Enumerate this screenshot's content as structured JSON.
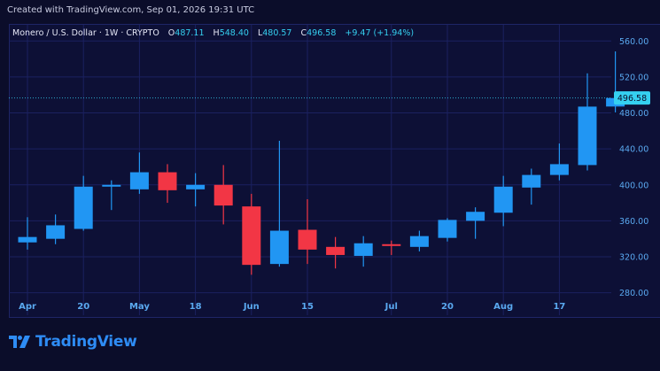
{
  "header": {
    "created_text": "Created with TradingView.com, Sep 01, 2026 19:31 UTC"
  },
  "legend": {
    "symbol": "Monero / U.S. Dollar · 1W · CRYPTO",
    "open_label": "O",
    "open_value": "487.11",
    "high_label": "H",
    "high_value": "548.40",
    "low_label": "L",
    "low_value": "480.57",
    "close_label": "C",
    "close_value": "496.58",
    "change": "+9.47 (+1.94%)"
  },
  "colors": {
    "background": "#0b0d2a",
    "up": "#2196f3",
    "down": "#f23645",
    "grid": "#1b2160",
    "axis_text": "#5aa9f0",
    "price_label_bg": "#35d0f0",
    "brand": "#2e8cf5"
  },
  "logo": {
    "text": "TradingView",
    "icon": "tradingview-logo-icon"
  },
  "chart_data": {
    "type": "candlestick",
    "title": "Monero / U.S. Dollar · 1W · CRYPTO",
    "xlabel": "",
    "ylabel": "",
    "ylim": [
      255,
      578
    ],
    "y_ticks": [
      280,
      320,
      360,
      400,
      440,
      480,
      520,
      560
    ],
    "x_tick_labels": [
      "Apr",
      "20",
      "May",
      "18",
      "Jun",
      "15",
      "Jul",
      "20",
      "Aug",
      "17"
    ],
    "x_tick_candle_index": [
      0,
      2,
      4,
      6,
      8,
      10,
      13,
      15,
      17,
      19
    ],
    "grid": true,
    "last_price": 496.58,
    "candles": [
      {
        "open": 336,
        "high": 364,
        "low": 328,
        "close": 342
      },
      {
        "open": 340,
        "high": 367,
        "low": 334,
        "close": 355
      },
      {
        "open": 351,
        "high": 410,
        "low": 349,
        "close": 398
      },
      {
        "open": 398,
        "high": 405,
        "low": 372,
        "close": 400
      },
      {
        "open": 395,
        "high": 436,
        "low": 390,
        "close": 414
      },
      {
        "open": 414,
        "high": 423,
        "low": 380,
        "close": 394
      },
      {
        "open": 395,
        "high": 413,
        "low": 376,
        "close": 400
      },
      {
        "open": 400,
        "high": 422,
        "low": 356,
        "close": 377
      },
      {
        "open": 376,
        "high": 390,
        "low": 300,
        "close": 311
      },
      {
        "open": 312,
        "high": 449,
        "low": 309,
        "close": 349
      },
      {
        "open": 350,
        "high": 384,
        "low": 312,
        "close": 328
      },
      {
        "open": 331,
        "high": 342,
        "low": 307,
        "close": 322
      },
      {
        "open": 321,
        "high": 343,
        "low": 309,
        "close": 335
      },
      {
        "open": 334,
        "high": 338,
        "low": 322,
        "close": 332
      },
      {
        "open": 331,
        "high": 349,
        "low": 326,
        "close": 343
      },
      {
        "open": 341,
        "high": 363,
        "low": 337,
        "close": 361
      },
      {
        "open": 360,
        "high": 375,
        "low": 340,
        "close": 370
      },
      {
        "open": 369,
        "high": 410,
        "low": 354,
        "close": 398
      },
      {
        "open": 397,
        "high": 418,
        "low": 378,
        "close": 411
      },
      {
        "open": 411,
        "high": 446,
        "low": 405,
        "close": 423
      },
      {
        "open": 422,
        "high": 524,
        "low": 416,
        "close": 487
      },
      {
        "open": 487.11,
        "high": 548.4,
        "low": 480.57,
        "close": 496.58
      }
    ]
  }
}
